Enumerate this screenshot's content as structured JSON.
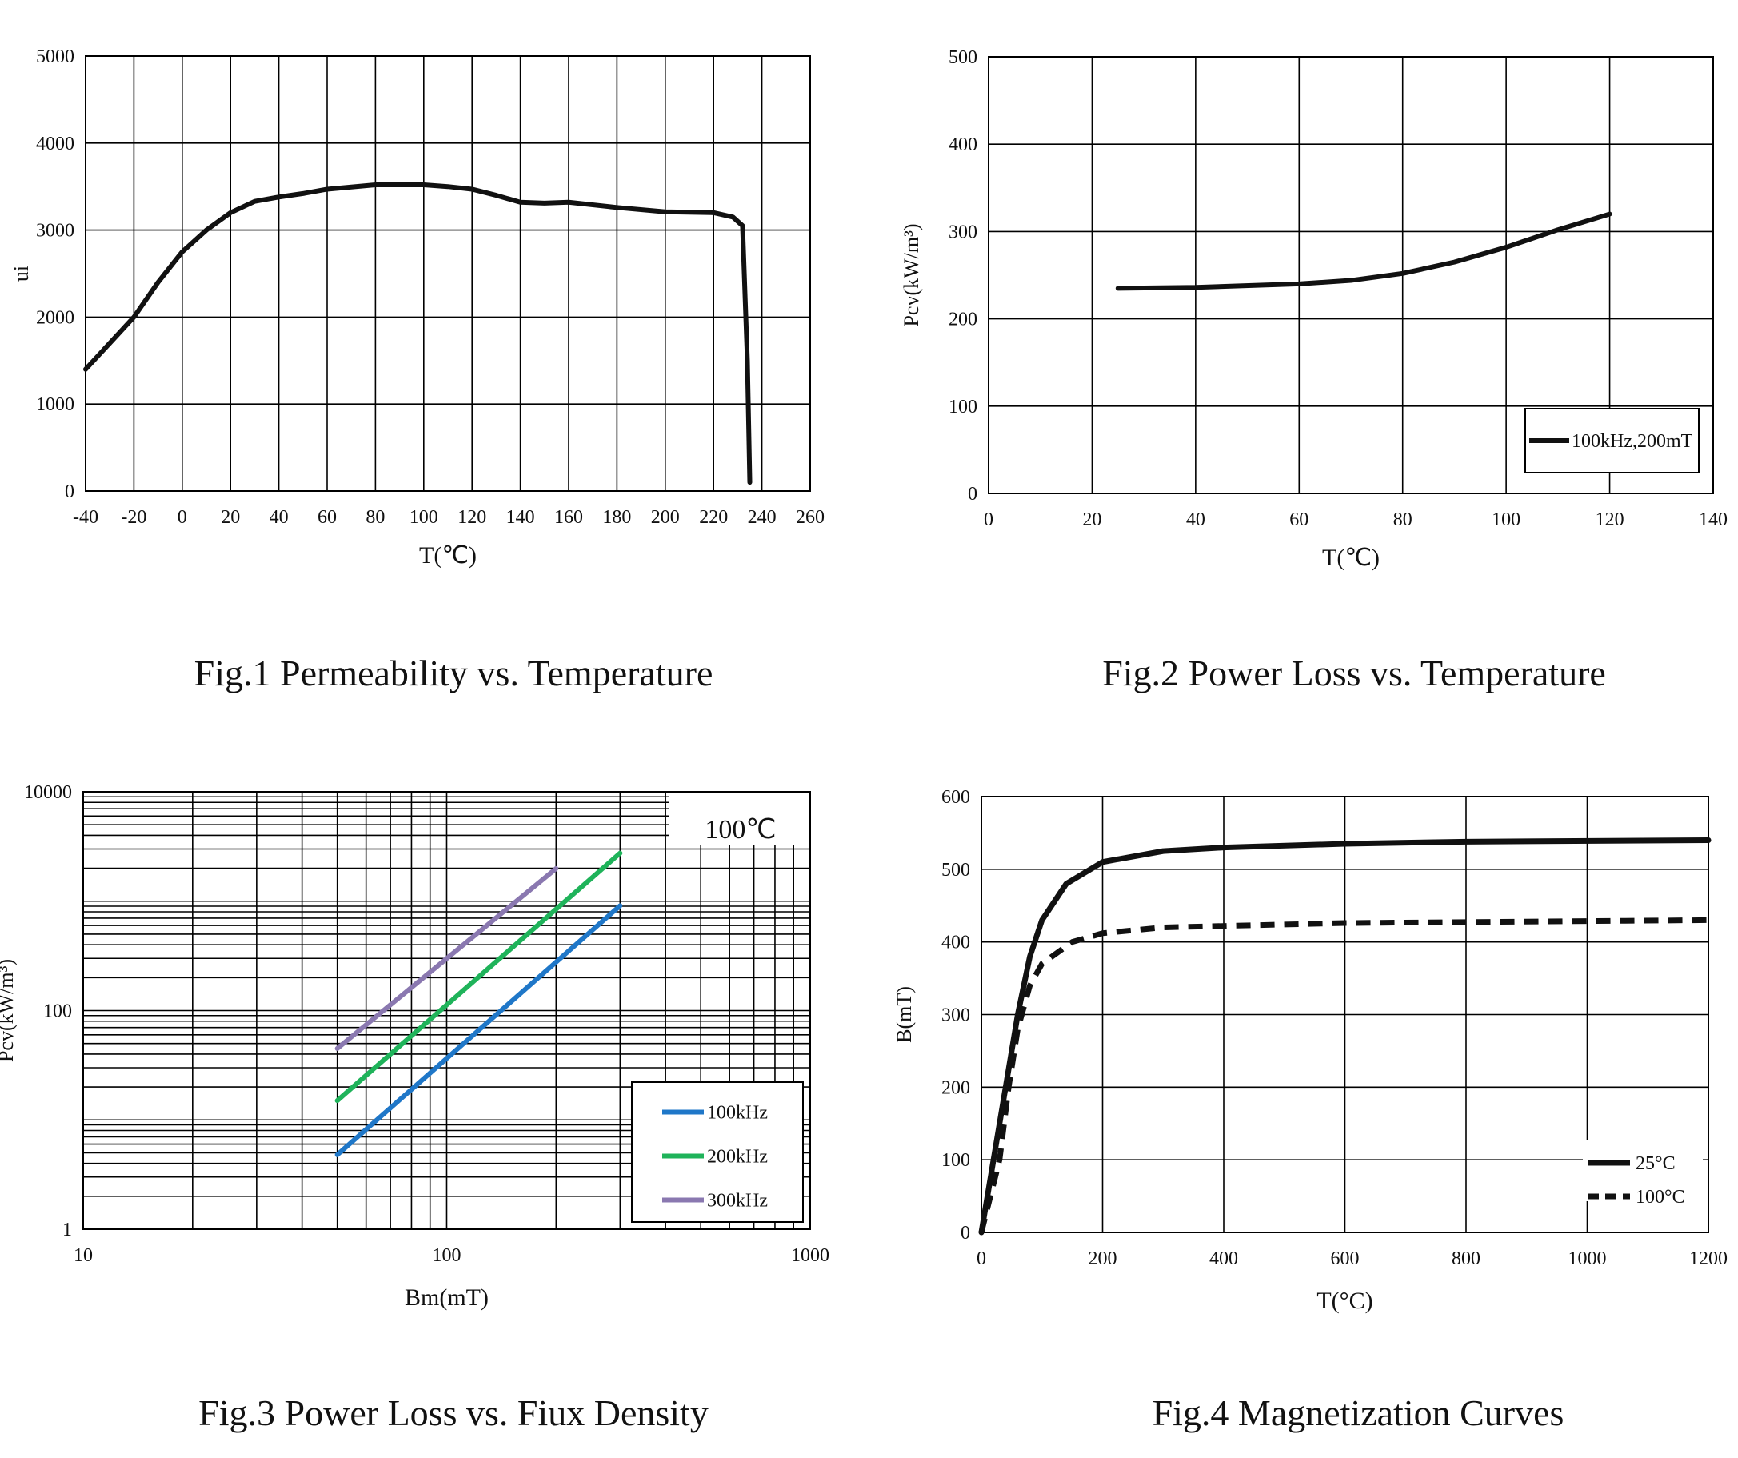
{
  "chart_data": [
    {
      "type": "line",
      "title": "Fig.1 Permeability vs. Temperature",
      "xlabel": "T(℃)",
      "ylabel": "ui",
      "xlim": [
        -40,
        260
      ],
      "ylim": [
        0,
        5000
      ],
      "grid": true,
      "x_ticks": [
        "-40",
        "-20",
        "0",
        "20",
        "40",
        "60",
        "80",
        "100",
        "120",
        "140",
        "160",
        "180",
        "200",
        "220",
        "240",
        "260"
      ],
      "y_ticks": [
        "0",
        "1000",
        "2000",
        "3000",
        "4000",
        "5000"
      ],
      "series": [
        {
          "name": "ui",
          "color": "#111111",
          "style": "solid",
          "x": [
            -40,
            -30,
            -20,
            -10,
            0,
            10,
            20,
            30,
            40,
            50,
            60,
            80,
            100,
            110,
            120,
            130,
            140,
            150,
            160,
            180,
            200,
            220,
            228,
            232,
            234,
            235
          ],
          "y": [
            1400,
            1700,
            2000,
            2400,
            2750,
            3000,
            3200,
            3330,
            3380,
            3420,
            3470,
            3520,
            3520,
            3500,
            3470,
            3400,
            3320,
            3310,
            3320,
            3260,
            3210,
            3200,
            3150,
            3050,
            1500,
            100
          ]
        }
      ]
    },
    {
      "type": "line",
      "title": "Fig.2 Power Loss vs. Temperature",
      "xlabel": "T(℃)",
      "ylabel": "Pcv(kW/m³)",
      "xlim": [
        0,
        140
      ],
      "ylim": [
        0,
        500
      ],
      "grid": true,
      "legend_position": "bottom-right",
      "x_ticks": [
        "0",
        "20",
        "40",
        "60",
        "80",
        "100",
        "120",
        "140"
      ],
      "y_ticks": [
        "0",
        "100",
        "200",
        "300",
        "400",
        "500"
      ],
      "series": [
        {
          "name": "100kHz,200mT",
          "color": "#111111",
          "style": "solid",
          "x": [
            25,
            40,
            60,
            70,
            80,
            90,
            100,
            110,
            120
          ],
          "y": [
            235,
            236,
            240,
            244,
            252,
            265,
            282,
            302,
            320
          ]
        }
      ]
    },
    {
      "type": "line",
      "title": "Fig.3 Power Loss vs. Fiux Density",
      "xlabel": "Bm(mT)",
      "ylabel": "Pcv(kW/m³)",
      "xscale": "log",
      "yscale": "log",
      "xlim": [
        10,
        1000
      ],
      "ylim": [
        1,
        10000
      ],
      "grid": true,
      "annotation": "100℃",
      "legend_position": "bottom-right",
      "x_ticks": [
        "10",
        "100",
        "1000"
      ],
      "y_ticks": [
        "1",
        "100",
        "10000"
      ],
      "series": [
        {
          "name": "100kHz",
          "color": "#1f77c8",
          "style": "solid",
          "x": [
            50,
            300
          ],
          "y": [
            4.8,
            910
          ]
        },
        {
          "name": "200kHz",
          "color": "#1fb35a",
          "style": "solid",
          "x": [
            50,
            300
          ],
          "y": [
            15,
            2750
          ]
        },
        {
          "name": "300kHz",
          "color": "#8a78b0",
          "style": "solid",
          "x": [
            50,
            200
          ],
          "y": [
            45,
            1990
          ]
        }
      ]
    },
    {
      "type": "line",
      "title": "Fig.4 Magnetization Curves",
      "xlabel": "T(°C)",
      "ylabel": "B(mT)",
      "xlim": [
        0,
        1200
      ],
      "ylim": [
        0,
        600
      ],
      "grid": true,
      "legend_position": "bottom-right",
      "x_ticks": [
        "0",
        "200",
        "400",
        "600",
        "800",
        "1000",
        "1200"
      ],
      "y_ticks": [
        "0",
        "100",
        "200",
        "300",
        "400",
        "500",
        "600"
      ],
      "series": [
        {
          "name": "25°C",
          "color": "#111111",
          "style": "solid",
          "x": [
            0,
            20,
            40,
            60,
            80,
            100,
            140,
            200,
            300,
            400,
            600,
            800,
            1200
          ],
          "y": [
            0,
            100,
            200,
            300,
            380,
            430,
            480,
            510,
            525,
            530,
            535,
            538,
            540
          ]
        },
        {
          "name": "100°C",
          "color": "#111111",
          "style": "dashed",
          "x": [
            0,
            30,
            45,
            60,
            80,
            100,
            150,
            200,
            300,
            600,
            1200
          ],
          "y": [
            0,
            100,
            200,
            280,
            340,
            370,
            400,
            412,
            420,
            426,
            430
          ]
        }
      ]
    }
  ]
}
